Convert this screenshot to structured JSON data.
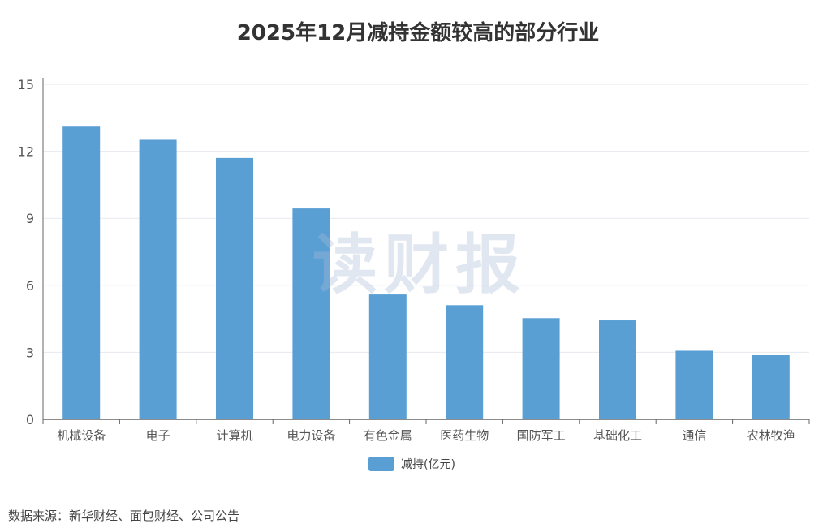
{
  "chart_data": {
    "type": "bar",
    "title": "2025年12月减持金额较高的部分行业",
    "categories": [
      "机械设备",
      "电子",
      "计算机",
      "电力设备",
      "有色金属",
      "医药生物",
      "国防军工",
      "基础化工",
      "通信",
      "农林牧渔"
    ],
    "series": [
      {
        "name": "减持(亿元)",
        "values": [
          13.14,
          12.55,
          11.7,
          9.44,
          5.59,
          5.11,
          4.53,
          4.43,
          3.07,
          2.87
        ],
        "color": "#5a9fd4"
      }
    ],
    "xlabel": "",
    "ylabel": "",
    "ylim": [
      0,
      15
    ],
    "yticks": [
      0,
      3,
      6,
      9,
      12,
      15
    ],
    "grid": true,
    "legend_position": "bottom"
  },
  "watermark": "读财报",
  "source": "数据来源：新华财经、面包财经、公司公告"
}
